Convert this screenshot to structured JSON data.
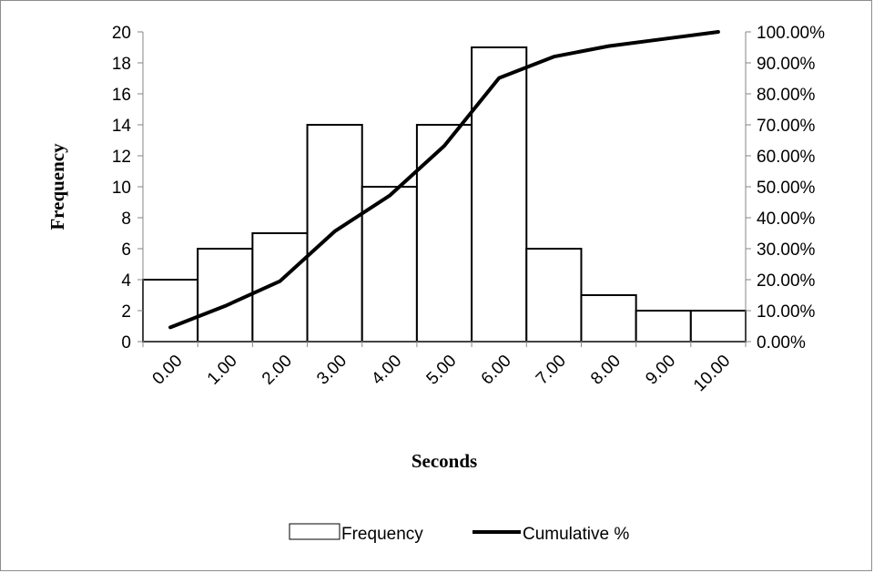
{
  "chart_data": {
    "type": "bar",
    "title": "",
    "xlabel": "Seconds",
    "ylabel": "Frequency",
    "categories": [
      "0.00",
      "1.00",
      "2.00",
      "3.00",
      "4.00",
      "5.00",
      "6.00",
      "7.00",
      "8.00",
      "9.00",
      "10.00"
    ],
    "series": [
      {
        "name": "Frequency",
        "type": "bar",
        "axis": "left",
        "values": [
          4,
          6,
          7,
          14,
          10,
          14,
          19,
          6,
          3,
          2,
          2
        ]
      },
      {
        "name": "Cumulative %",
        "type": "line",
        "axis": "right",
        "values": [
          4.6,
          11.5,
          19.5,
          35.6,
          47.1,
          63.2,
          85.1,
          92.0,
          95.4,
          97.7,
          100.0
        ]
      }
    ],
    "ylim": [
      0,
      20
    ],
    "yticks": [
      "0",
      "2",
      "4",
      "6",
      "8",
      "10",
      "12",
      "14",
      "16",
      "18",
      "20"
    ],
    "y2lim": [
      0,
      100
    ],
    "y2ticks": [
      "0.00%",
      "10.00%",
      "20.00%",
      "30.00%",
      "40.00%",
      "50.00%",
      "60.00%",
      "70.00%",
      "80.00%",
      "90.00%",
      "100.00%"
    ],
    "grid": false,
    "legend": "bottom",
    "colors": {
      "bar_fill": "#ffffff",
      "bar_stroke": "#000000",
      "line": "#000000"
    }
  }
}
